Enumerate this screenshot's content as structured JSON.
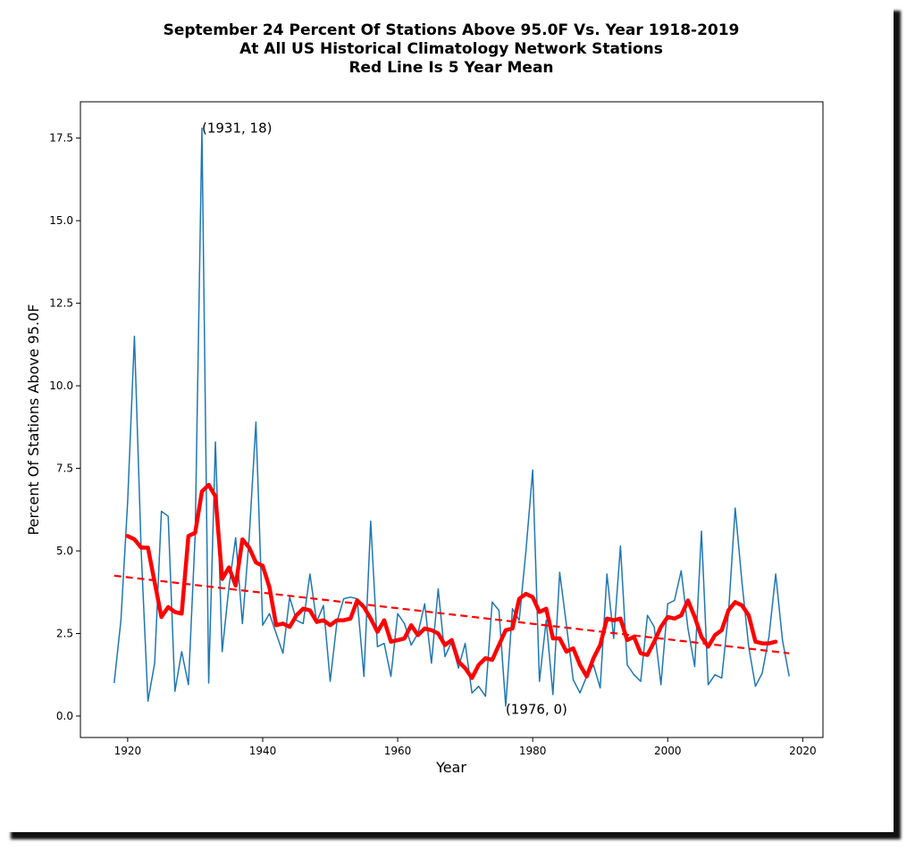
{
  "chart_data": {
    "type": "line",
    "title_lines": [
      "September 24 Percent Of Stations Above 95.0F Vs. Year 1918-2019",
      "At All US Historical Climatology Network Stations",
      "Red Line Is 5 Year Mean"
    ],
    "xlabel": "Year",
    "ylabel": "Percent Of Stations Above 95.0F",
    "xlim": [
      1913,
      2023
    ],
    "ylim": [
      -0.65,
      18.6
    ],
    "x_ticks": [
      1920,
      1940,
      1960,
      1980,
      2000,
      2020
    ],
    "y_ticks": [
      0.0,
      2.5,
      5.0,
      7.5,
      10.0,
      12.5,
      15.0,
      17.5
    ],
    "x_tick_labels": [
      "1920",
      "1940",
      "1960",
      "1980",
      "2000",
      "2020"
    ],
    "y_tick_labels": [
      "0.0",
      "2.5",
      "5.0",
      "7.5",
      "10.0",
      "12.5",
      "15.0",
      "17.5"
    ],
    "series": [
      {
        "style": "thin",
        "color": "#1f77b4",
        "x_start": 1918,
        "values": [
          1.0,
          2.9,
          6.5,
          11.5,
          5.0,
          0.45,
          1.6,
          6.2,
          6.05,
          0.75,
          1.95,
          0.95,
          5.5,
          17.8,
          1.0,
          8.3,
          1.95,
          3.9,
          5.4,
          2.8,
          5.4,
          8.9,
          2.75,
          3.1,
          2.5,
          1.9,
          3.6,
          2.9,
          2.8,
          4.3,
          2.85,
          3.35,
          1.05,
          2.85,
          3.55,
          3.6,
          3.55,
          1.2,
          5.9,
          2.1,
          2.2,
          1.2,
          3.1,
          2.8,
          2.15,
          2.5,
          3.4,
          1.6,
          3.85,
          1.8,
          2.25,
          1.45,
          2.2,
          0.7,
          0.9,
          0.6,
          3.45,
          3.2,
          0.3,
          3.25,
          2.9,
          5.0,
          7.45,
          1.05,
          2.9,
          0.65,
          4.35,
          2.75,
          1.1,
          0.7,
          1.2,
          1.55,
          0.85,
          4.3,
          2.35,
          5.15,
          1.55,
          1.25,
          1.05,
          3.05,
          2.7,
          0.95,
          3.4,
          3.5,
          4.4,
          2.65,
          1.5,
          5.6,
          0.95,
          1.25,
          1.15,
          3.1,
          6.3,
          4.05,
          2.1,
          0.9,
          1.3,
          2.4,
          4.3,
          2.3,
          1.2
        ]
      },
      {
        "style": "thick",
        "color": "#ff0000",
        "x_start": 1920,
        "values": [
          5.45,
          5.35,
          5.1,
          5.1,
          4.05,
          3.0,
          3.3,
          3.15,
          3.1,
          5.45,
          5.55,
          6.8,
          7.0,
          6.65,
          4.15,
          4.5,
          3.95,
          5.35,
          5.1,
          4.65,
          4.55,
          3.9,
          2.75,
          2.8,
          2.7,
          3.05,
          3.25,
          3.2,
          2.85,
          2.9,
          2.75,
          2.9,
          2.9,
          2.95,
          3.5,
          3.3,
          2.95,
          2.55,
          2.9,
          2.25,
          2.3,
          2.35,
          2.75,
          2.45,
          2.65,
          2.6,
          2.5,
          2.15,
          2.3,
          1.65,
          1.45,
          1.15,
          1.55,
          1.75,
          1.7,
          2.15,
          2.6,
          2.65,
          3.55,
          3.7,
          3.6,
          3.15,
          3.25,
          2.35,
          2.35,
          1.95,
          2.05,
          1.55,
          1.2,
          1.75,
          2.15,
          2.95,
          2.9,
          2.95,
          2.3,
          2.4,
          1.9,
          1.85,
          2.25,
          2.7,
          3.0,
          2.95,
          3.05,
          3.5,
          3.0,
          2.4,
          2.1,
          2.45,
          2.6,
          3.2,
          3.45,
          3.35,
          3.05,
          2.25,
          2.2,
          2.2,
          2.25
        ]
      }
    ],
    "trend_line": {
      "color": "#ff0000",
      "style": "dashed",
      "x": [
        1918,
        2018
      ],
      "y": [
        4.25,
        1.9
      ]
    },
    "annotations": [
      {
        "text": "(1931, 18)",
        "x": 1931,
        "y": 17.8
      },
      {
        "text": "(1976, 0)",
        "x": 1976,
        "y": 0.2
      }
    ],
    "grid": false,
    "legend": false
  }
}
